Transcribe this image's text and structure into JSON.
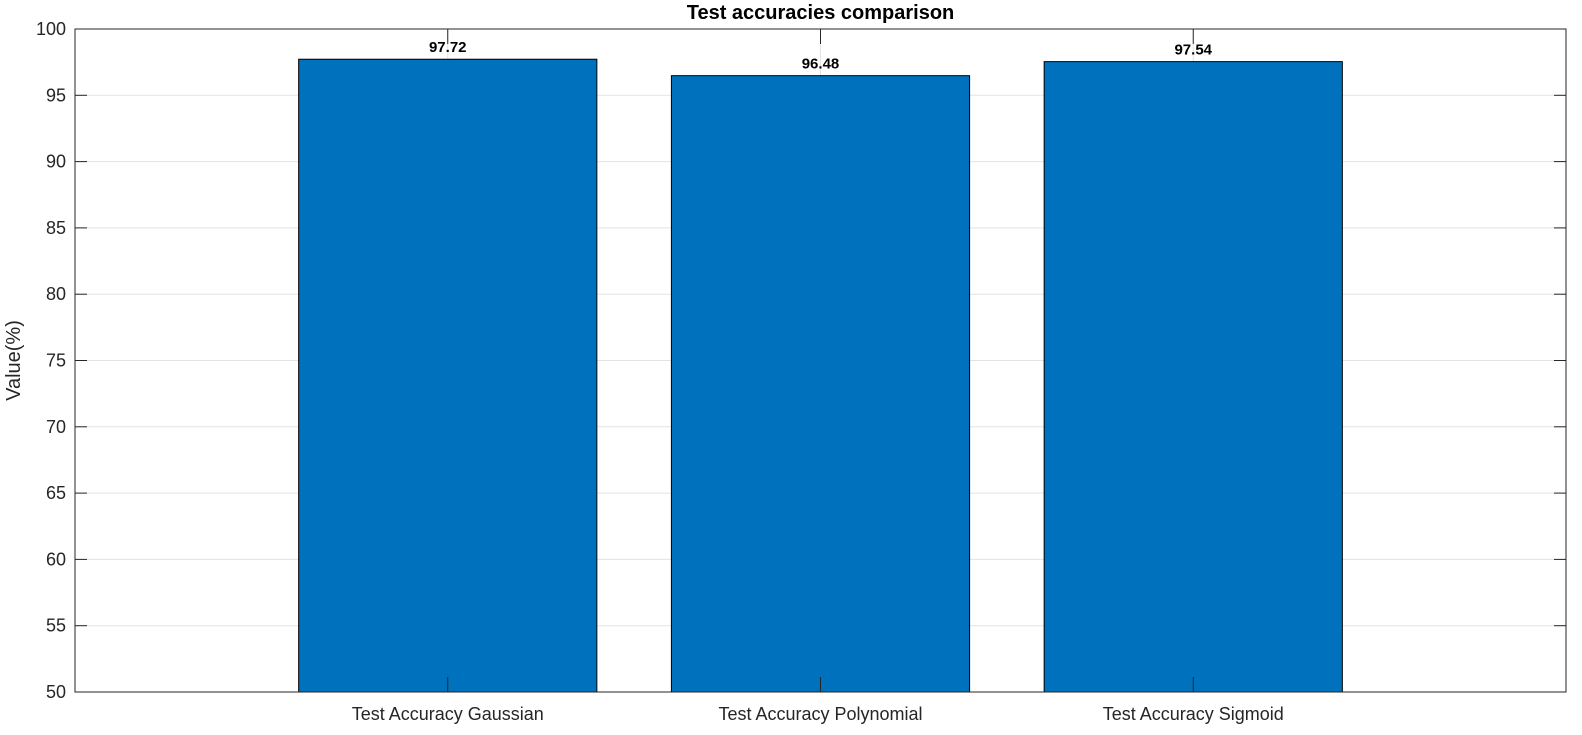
{
  "chart_data": {
    "type": "bar",
    "title": "Test accuracies comparison",
    "xlabel": "",
    "ylabel": "Value(%)",
    "categories": [
      "Test Accuracy Gaussian",
      "Test Accuracy Polynomial",
      "Test Accuracy Sigmoid"
    ],
    "values": [
      97.72,
      96.48,
      97.54
    ],
    "data_labels": [
      "97.72",
      "96.48",
      "97.54"
    ],
    "ylim": [
      50,
      100
    ],
    "yticks": [
      50,
      55,
      60,
      65,
      70,
      75,
      80,
      85,
      90,
      95,
      100
    ],
    "xlim": [
      0,
      4
    ],
    "grid": true,
    "bar_color": "#0072BD",
    "bar_edge_color": "#000000",
    "grid_color": "#e3e3e3",
    "axis_color": "#262626"
  }
}
